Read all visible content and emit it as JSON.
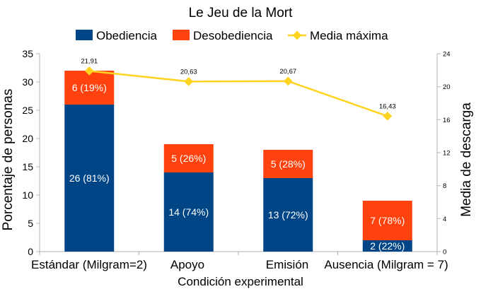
{
  "chart_data": {
    "type": "bar",
    "stacked": true,
    "title": "Le Jeu de la Mort",
    "xlabel": "Condición experimental",
    "ylabel": "Porcentaje de personas",
    "y2label": "Media de descarga",
    "ylim": [
      0,
      35
    ],
    "yticks": [
      "0",
      "5",
      "10",
      "15",
      "20",
      "25",
      "30",
      "35"
    ],
    "y2lim": [
      0,
      24
    ],
    "y2ticks": [
      "0",
      "4",
      "8",
      "12",
      "16",
      "20",
      "24"
    ],
    "grid": false,
    "legend_position": "top",
    "categories": [
      "Estándar (Milgram=2)",
      "Apoyo",
      "Emisión",
      "Ausencia (Milgram = 7)"
    ],
    "series": [
      {
        "name": "Obediencia",
        "kind": "bar",
        "color": "#004586",
        "values": [
          26,
          14,
          13,
          2
        ],
        "labels": [
          "26 (81%)",
          "14 (74%)",
          "13 (72%)",
          "2 (22%)"
        ]
      },
      {
        "name": "Desobediencia",
        "kind": "bar",
        "color": "#ff420e",
        "values": [
          6,
          5,
          5,
          7
        ],
        "labels": [
          "6 (19%)",
          "5 (26%)",
          "5 (28%)",
          "7 (78%)"
        ]
      },
      {
        "name": "Media máxima",
        "kind": "line",
        "axis": "secondary",
        "color": "#ffd320",
        "values": [
          21.91,
          20.63,
          20.67,
          16.43
        ],
        "labels": [
          "21,91",
          "20,63",
          "20,67",
          "16,43"
        ]
      }
    ]
  }
}
